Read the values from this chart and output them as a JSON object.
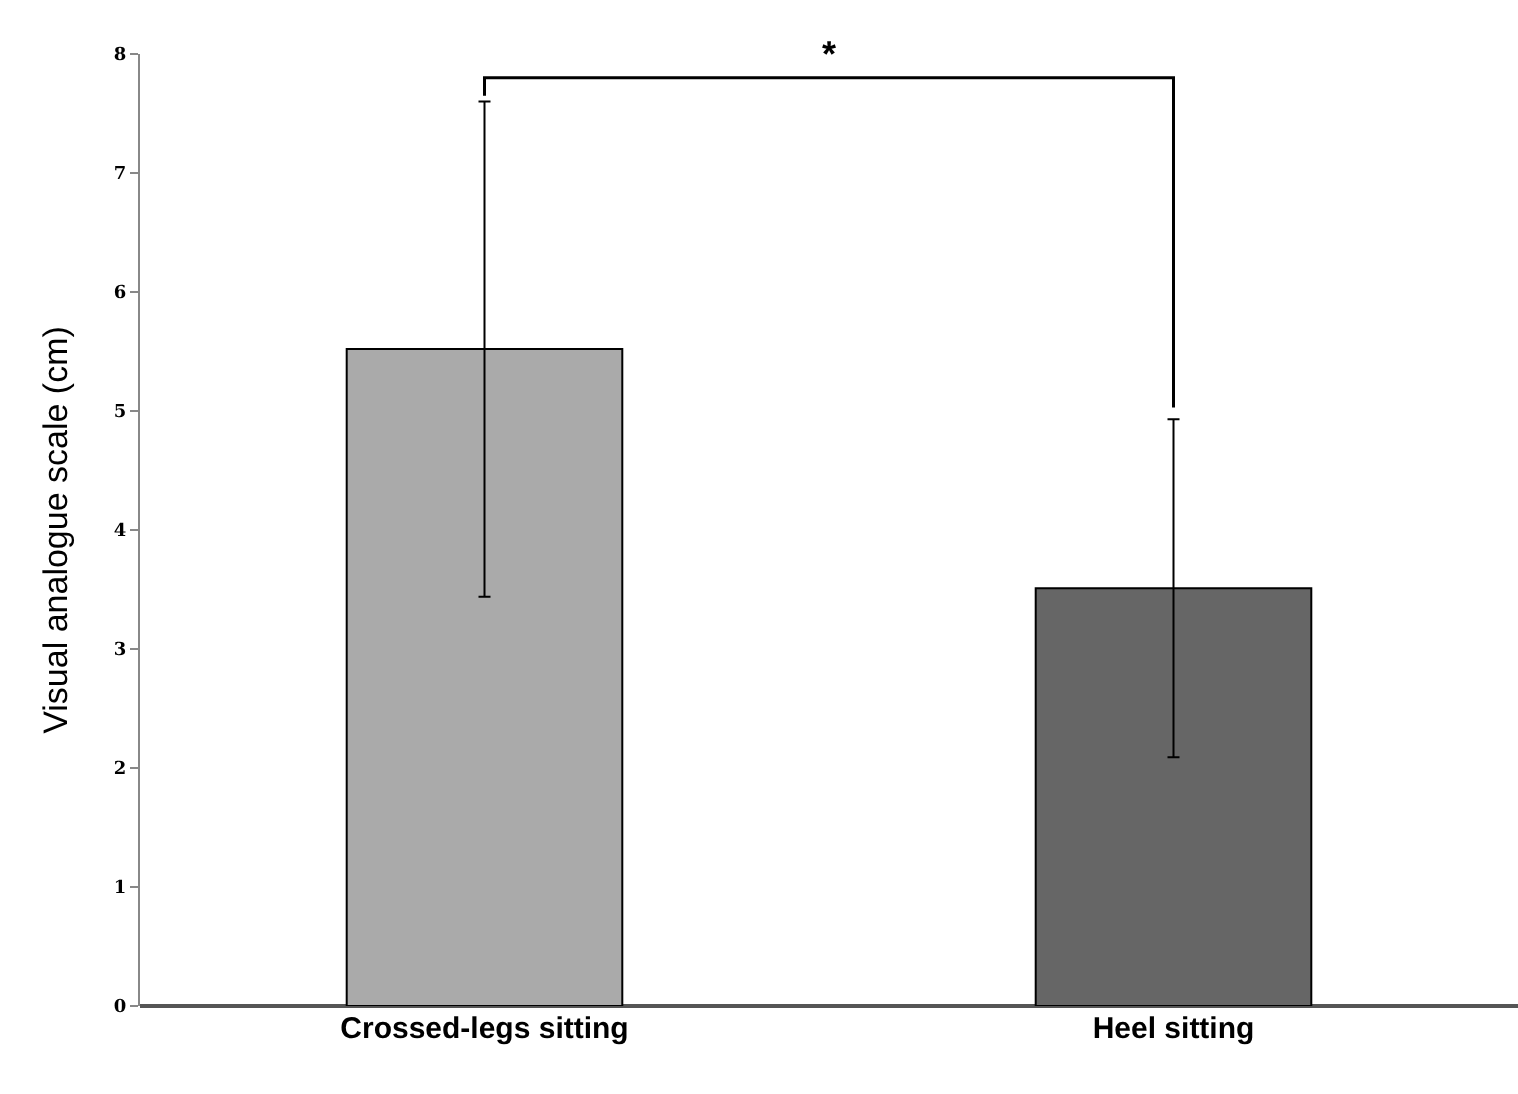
{
  "chart_data": {
    "type": "bar",
    "ylabel": "Visual analogue scale (cm)",
    "categories": [
      "Crossed-legs sitting",
      "Heel sitting"
    ],
    "values": [
      5.52,
      3.51
    ],
    "colors": [
      "#aaaaaa",
      "#666666"
    ],
    "errors": [
      2.08,
      1.42
    ],
    "ylim": [
      0,
      8
    ],
    "yticks": [
      0,
      1,
      2,
      3,
      4,
      5,
      6,
      7,
      8
    ],
    "grid": false,
    "annotations": [
      "*"
    ]
  }
}
